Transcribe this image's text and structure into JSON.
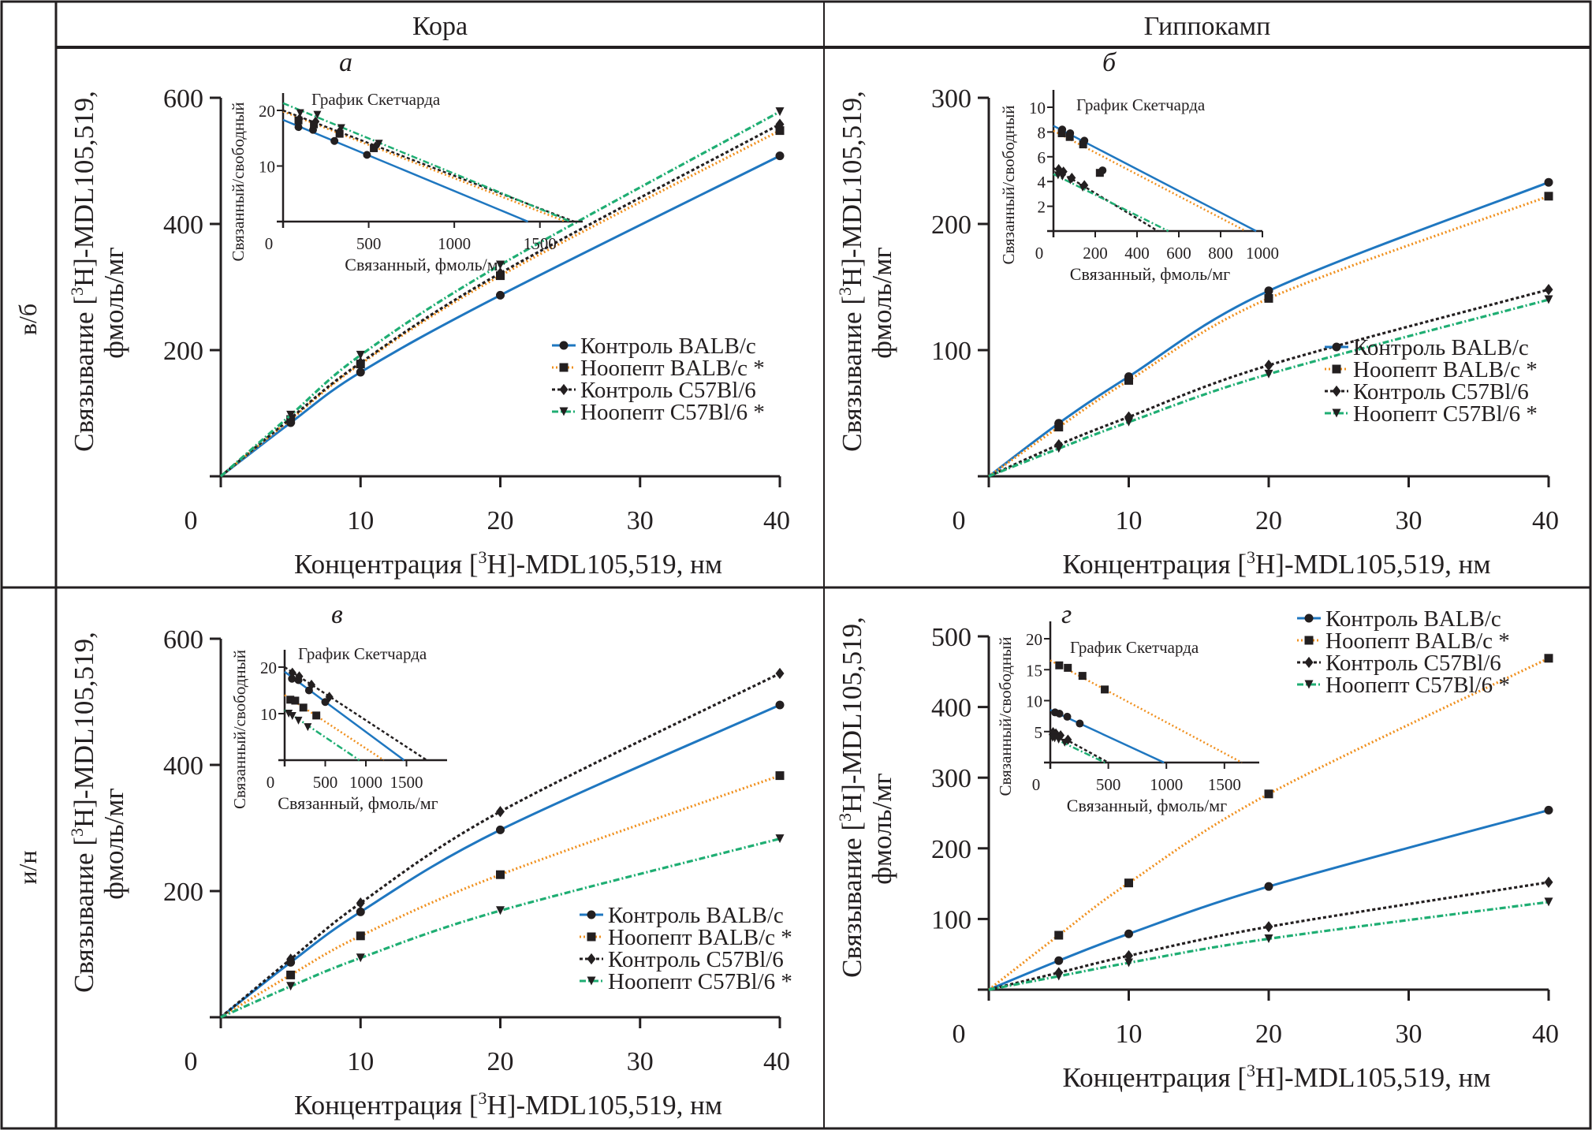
{
  "column_headers": [
    "Кора",
    "Гиппокамп"
  ],
  "row_labels": [
    "в/б",
    "и/н"
  ],
  "legend": [
    {
      "name": "Контроль BALB/c",
      "color": "#1f77c0",
      "marker": "circle",
      "dash": "solid"
    },
    {
      "name": "Ноопепт BALB/c *",
      "color": "#f0901e",
      "marker": "square",
      "dash": "dotted"
    },
    {
      "name": "Контроль C57Bl/6",
      "color": "#231f20",
      "marker": "diamond",
      "dash": "dashed"
    },
    {
      "name": "Ноопепт C57Bl/6 *",
      "color": "#1fae73",
      "marker": "triangle-down",
      "dash": "dashdot"
    }
  ],
  "chart_data": [
    {
      "panel": "а",
      "type": "line",
      "region": "Кора",
      "route": "в/б",
      "xlabel_main": "Концентрация [3H]-MDL105,519, нм",
      "ylabel_main_line1": "Связывание [3H]-MDL105,519,",
      "ylabel_main_line2": "фмоль/мг",
      "xlim": [
        0,
        40
      ],
      "ylim": [
        0,
        600
      ],
      "xticks": [
        0,
        10,
        20,
        30,
        40
      ],
      "yticks": [
        200,
        400,
        600
      ],
      "ytick_zero_label": "0",
      "legend_position": "center-right",
      "x": [
        0,
        5,
        10,
        20,
        40
      ],
      "series": [
        {
          "name": "Контроль BALB/c",
          "values": [
            0,
            85,
            165,
            287,
            508
          ]
        },
        {
          "name": "Ноопепт BALB/c *",
          "values": [
            0,
            90,
            178,
            318,
            548
          ]
        },
        {
          "name": "Контроль C57Bl/6",
          "values": [
            0,
            92,
            180,
            322,
            558
          ]
        },
        {
          "name": "Ноопепт C57Bl/6 *",
          "values": [
            0,
            97,
            192,
            335,
            578
          ]
        }
      ],
      "inset": {
        "title": "График Скетчарда",
        "xlabel": "Связанный, фмоль/мг",
        "ylabel": "Связанный/свободный",
        "xlim": [
          0,
          1750
        ],
        "ylim": [
          0,
          24
        ],
        "xticks": [
          0,
          500,
          1000,
          1500
        ],
        "yticks": [
          10,
          20
        ],
        "series": [
          {
            "name": "Контроль BALB/c",
            "points": [
              [
                90,
                17
              ],
              [
                175,
                16.5
              ],
              [
                300,
                14.5
              ],
              [
                490,
                12
              ]
            ],
            "line": [
              [
                0,
                18.3
              ],
              [
                1430,
                0
              ]
            ]
          },
          {
            "name": "Ноопепт BALB/c *",
            "points": [
              [
                90,
                18.2
              ],
              [
                180,
                17.5
              ],
              [
                330,
                15.8
              ],
              [
                530,
                13.2
              ]
            ],
            "line": [
              [
                0,
                19.8
              ],
              [
                1650,
                0
              ]
            ]
          },
          {
            "name": "Контроль C57Bl/6",
            "points": [
              [
                95,
                18.5
              ],
              [
                190,
                18
              ],
              [
                330,
                16.2
              ],
              [
                540,
                13.5
              ]
            ],
            "line": [
              [
                0,
                20
              ],
              [
                1700,
                0
              ]
            ]
          },
          {
            "name": "Ноопепт C57Bl/6 *",
            "points": [
              [
                100,
                19.5
              ],
              [
                200,
                19.2
              ],
              [
                340,
                16.8
              ],
              [
                560,
                14
              ]
            ],
            "line": [
              [
                0,
                21.3
              ],
              [
                1680,
                0
              ]
            ]
          }
        ]
      }
    },
    {
      "panel": "б",
      "type": "line",
      "region": "Гиппокамп",
      "route": "в/б",
      "xlabel_main": "Концентрация [3H]-MDL105,519, нм",
      "ylabel_main_line1": "Связывание [3H]-MDL105,519,",
      "ylabel_main_line2": "фмоль/мг",
      "xlim": [
        0,
        40
      ],
      "ylim": [
        0,
        300
      ],
      "xticks": [
        0,
        10,
        20,
        30,
        40
      ],
      "yticks": [
        100,
        200,
        300
      ],
      "ytick_zero_label": "0",
      "legend_position": "center-right",
      "x": [
        0,
        5,
        10,
        20,
        40
      ],
      "series": [
        {
          "name": "Контроль BALB/c",
          "values": [
            0,
            42,
            79,
            147,
            233
          ]
        },
        {
          "name": "Ноопепт BALB/c *",
          "values": [
            0,
            39,
            76,
            141,
            222
          ]
        },
        {
          "name": "Контроль C57Bl/6",
          "values": [
            0,
            25,
            47,
            88,
            148
          ]
        },
        {
          "name": "Ноопепт C57Bl/6 *",
          "values": [
            0,
            22,
            43,
            81,
            140
          ]
        }
      ],
      "inset": {
        "title": "График Скетчарда",
        "xlabel": "Связанный, фмоль/мг",
        "ylabel": "Связанный/свободный",
        "xlim": [
          0,
          1000
        ],
        "ylim": [
          0,
          10
        ],
        "xticks": [
          0,
          200,
          400,
          600,
          800,
          1000
        ],
        "yticks": [
          2,
          4,
          6,
          8,
          10
        ],
        "series": [
          {
            "name": "Контроль BALB/c",
            "points": [
              [
                42,
                8.2
              ],
              [
                80,
                7.9
              ],
              [
                148,
                7.3
              ],
              [
                235,
                4.9
              ]
            ],
            "line": [
              [
                0,
                8.5
              ],
              [
                970,
                0
              ]
            ]
          },
          {
            "name": "Ноопепт BALB/c *",
            "points": [
              [
                40,
                7.9
              ],
              [
                78,
                7.6
              ],
              [
                142,
                7.0
              ],
              [
                222,
                4.7
              ]
            ],
            "line": [
              [
                0,
                8.1
              ],
              [
                920,
                0
              ]
            ]
          },
          {
            "name": "Контроль C57Bl/6",
            "points": [
              [
                25,
                5.0
              ],
              [
                48,
                4.8
              ],
              [
                88,
                4.3
              ],
              [
                148,
                3.7
              ]
            ],
            "line": [
              [
                0,
                5.1
              ],
              [
                500,
                0
              ]
            ]
          },
          {
            "name": "Ноопепт C57Bl/6 *",
            "points": [
              [
                22,
                4.5
              ],
              [
                43,
                4.4
              ],
              [
                81,
                4.1
              ],
              [
                140,
                3.5
              ]
            ],
            "line": [
              [
                0,
                4.6
              ],
              [
                550,
                0
              ]
            ]
          }
        ]
      }
    },
    {
      "panel": "в",
      "type": "line",
      "region": "Кора",
      "route": "и/н",
      "xlabel_main": "Концентрация [3H]-MDL105,519, нм",
      "ylabel_main_line1": "Связывание [3H]-MDL105,519,",
      "ylabel_main_line2": "фмоль/мг",
      "xlim": [
        0,
        40
      ],
      "ylim": [
        0,
        600
      ],
      "xticks": [
        0,
        10,
        20,
        30,
        40
      ],
      "yticks": [
        200,
        400,
        600
      ],
      "ytick_zero_label": "0",
      "legend_position": "bottom-right",
      "x": [
        0,
        5,
        10,
        20,
        40
      ],
      "series": [
        {
          "name": "Контроль BALB/c",
          "values": [
            0,
            87,
            167,
            297,
            495
          ]
        },
        {
          "name": "Ноопепт BALB/c *",
          "values": [
            0,
            67,
            129,
            226,
            383
          ]
        },
        {
          "name": "Контроль C57Bl/6",
          "values": [
            0,
            92,
            181,
            326,
            545
          ]
        },
        {
          "name": "Ноопепт C57Bl/6 *",
          "values": [
            0,
            49,
            94,
            169,
            283
          ]
        }
      ],
      "inset": {
        "title": "График Скетчарда",
        "xlabel": "Связанный, фмоль/мг",
        "ylabel": "Связанный/свободный",
        "xlim": [
          0,
          2000
        ],
        "ylim": [
          0,
          24
        ],
        "xticks": [
          0,
          500,
          1000,
          1500
        ],
        "yticks": [
          10,
          20
        ],
        "series": [
          {
            "name": "Контроль BALB/c",
            "points": [
              [
                90,
                17.5
              ],
              [
                170,
                17.2
              ],
              [
                300,
                15
              ],
              [
                500,
                12.5
              ]
            ],
            "line": [
              [
                0,
                19
              ],
              [
                1470,
                0
              ]
            ]
          },
          {
            "name": "Ноопепт BALB/c *",
            "points": [
              [
                70,
                13
              ],
              [
                130,
                12.8
              ],
              [
                230,
                11.3
              ],
              [
                390,
                9.6
              ]
            ],
            "line": [
              [
                0,
                14
              ],
              [
                1220,
                0
              ]
            ]
          },
          {
            "name": "Контроль C57Bl/6",
            "points": [
              [
                95,
                18.8
              ],
              [
                180,
                18
              ],
              [
                330,
                16.2
              ],
              [
                550,
                13.6
              ]
            ],
            "line": [
              [
                0,
                20
              ],
              [
                1750,
                0
              ]
            ]
          },
          {
            "name": "Ноопепт C57Bl/6 *",
            "points": [
              [
                50,
                10
              ],
              [
                95,
                9.5
              ],
              [
                170,
                8.5
              ],
              [
                285,
                7.1
              ]
            ],
            "line": [
              [
                0,
                10.8
              ],
              [
                920,
                0
              ]
            ]
          }
        ]
      }
    },
    {
      "panel": "г",
      "type": "line",
      "region": "Гиппокамп",
      "route": "и/н",
      "xlabel_main": "Концентрация [3H]-MDL105,519, нм",
      "ylabel_main_line1": "Связывание [3H]-MDL105,519,",
      "ylabel_main_line2": "фмоль/мг",
      "xlim": [
        0,
        40
      ],
      "ylim": [
        0,
        500
      ],
      "xticks": [
        0,
        10,
        20,
        30,
        40
      ],
      "yticks": [
        100,
        200,
        300,
        400,
        500
      ],
      "ytick_zero_label": "0",
      "legend_position": "top-right",
      "x": [
        0,
        5,
        10,
        20,
        40
      ],
      "series": [
        {
          "name": "Контроль BALB/c",
          "values": [
            0,
            41,
            79,
            146,
            254
          ]
        },
        {
          "name": "Ноопепт BALB/c *",
          "values": [
            0,
            77,
            151,
            277,
            469
          ]
        },
        {
          "name": "Контроль C57Bl/6",
          "values": [
            0,
            24,
            48,
            89,
            152
          ]
        },
        {
          "name": "Ноопепт C57Bl/6 *",
          "values": [
            0,
            19,
            38,
            72,
            124
          ]
        }
      ],
      "inset": {
        "title": "График Скетчарда",
        "xlabel": "Связанный, фмоль/мг",
        "ylabel": "Связанный/свободный",
        "xlim": [
          0,
          1800
        ],
        "ylim": [
          0,
          20
        ],
        "xticks": [
          0,
          500,
          1000,
          1500
        ],
        "yticks": [
          5,
          10,
          15,
          20
        ],
        "series": [
          {
            "name": "Контроль BALB/c",
            "points": [
              [
                41,
                8.1
              ],
              [
                79,
                7.9
              ],
              [
                146,
                7.4
              ],
              [
                254,
                6.3
              ]
            ],
            "line": [
              [
                0,
                8.5
              ],
              [
                980,
                0
              ]
            ]
          },
          {
            "name": "Ноопепт BALB/c *",
            "points": [
              [
                77,
                15.7
              ],
              [
                151,
                15.3
              ],
              [
                277,
                14
              ],
              [
                469,
                11.8
              ]
            ],
            "line": [
              [
                0,
                16.5
              ],
              [
                1650,
                0
              ]
            ]
          },
          {
            "name": "Контроль C57Bl/6",
            "points": [
              [
                24,
                4.9
              ],
              [
                48,
                4.7
              ],
              [
                89,
                4.4
              ],
              [
                152,
                3.7
              ]
            ],
            "line": [
              [
                0,
                5.1
              ],
              [
                500,
                0
              ]
            ]
          },
          {
            "name": "Ноопепт C57Bl/6 *",
            "points": [
              [
                19,
                4.0
              ],
              [
                38,
                3.9
              ],
              [
                72,
                3.7
              ],
              [
                124,
                3.2
              ]
            ],
            "line": [
              [
                0,
                4.2
              ],
              [
                470,
                0
              ]
            ]
          }
        ]
      }
    }
  ]
}
